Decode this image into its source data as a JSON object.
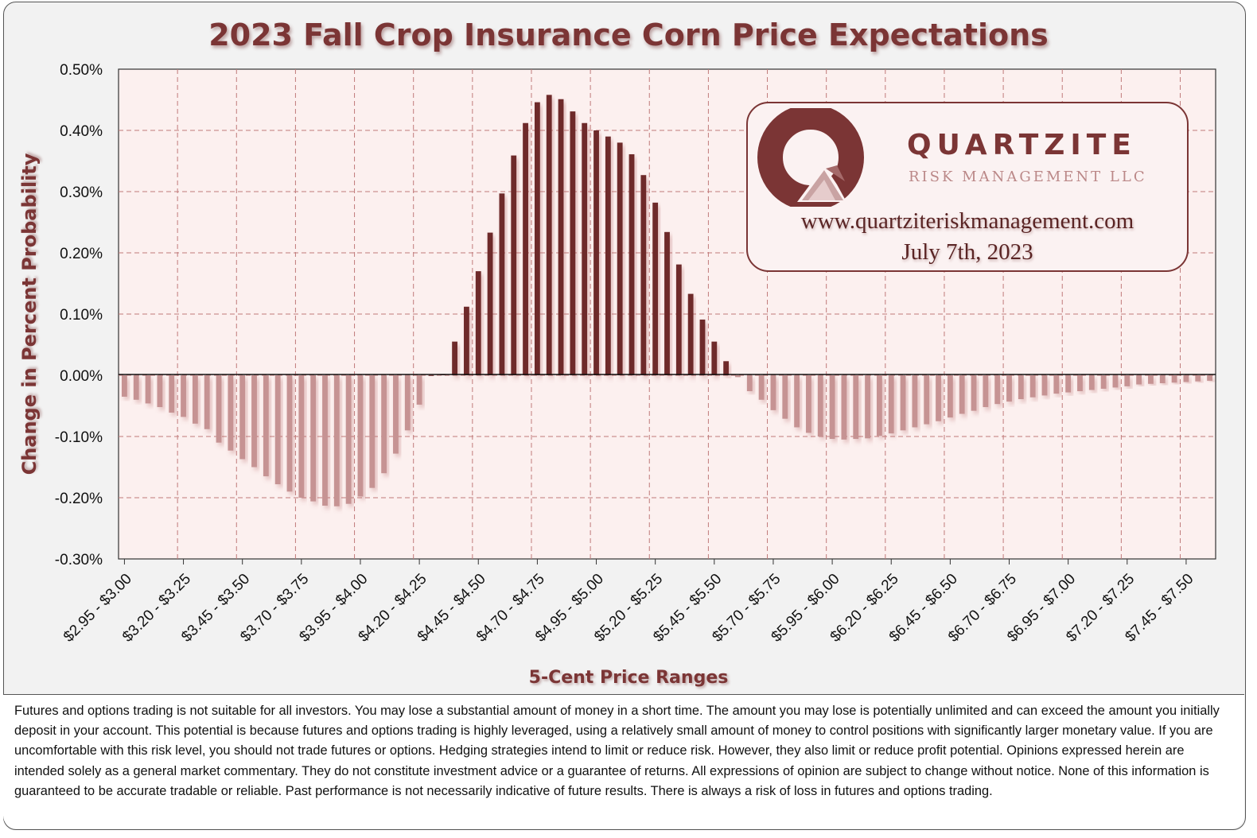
{
  "title": "2023 Fall Crop Insurance Corn Price Expectations",
  "logo": {
    "brand": "QUARTZITE",
    "subtitle": "RISK MANAGEMENT LLC",
    "url": "www.quartziteriskmanagement.com",
    "date": "July 7th, 2023"
  },
  "colors": {
    "positive": "#6e2b2b",
    "negative": "#c69393",
    "grid": "#c07a7a",
    "plot_bg": "#fcf0ef",
    "title": "#7b3535"
  },
  "chart_data": {
    "type": "bar",
    "title": "2023 Fall Crop Insurance Corn Price Expectations",
    "xlabel": "5-Cent Price Ranges",
    "ylabel": "Change in Percent Probability",
    "ylim": [
      -0.3,
      0.5
    ],
    "yticks": [
      "0.50%",
      "0.40%",
      "0.30%",
      "0.20%",
      "0.10%",
      "0.00%",
      "-0.10%",
      "-0.20%",
      "-0.30%"
    ],
    "tick_labels": [
      "$2.95 - $3.00",
      "$3.20 - $3.25",
      "$3.45 - $3.50",
      "$3.70 - $3.75",
      "$3.95 - $4.00",
      "$4.20 - $4.25",
      "$4.45 - $4.50",
      "$4.70 - $4.75",
      "$4.95 - $5.00",
      "$5.20 - $5.25",
      "$5.45 - $5.50",
      "$5.70 - $5.75",
      "$5.95 - $6.00",
      "$6.20 - $6.25",
      "$6.45 - $6.50",
      "$6.70 - $6.75",
      "$6.95 - $7.00",
      "$7.20 - $7.25",
      "$7.45 - $7.50"
    ],
    "categories_start": 2.95,
    "category_step": 0.05,
    "values": [
      -0.035,
      -0.04,
      -0.046,
      -0.052,
      -0.061,
      -0.068,
      -0.079,
      -0.088,
      -0.11,
      -0.123,
      -0.137,
      -0.15,
      -0.165,
      -0.178,
      -0.19,
      -0.2,
      -0.206,
      -0.213,
      -0.214,
      -0.21,
      -0.198,
      -0.184,
      -0.16,
      -0.128,
      -0.09,
      -0.048,
      0.0,
      0.002,
      0.055,
      0.112,
      0.17,
      0.233,
      0.297,
      0.359,
      0.412,
      0.446,
      0.458,
      0.451,
      0.431,
      0.412,
      0.4,
      0.39,
      0.38,
      0.361,
      0.327,
      0.282,
      0.234,
      0.181,
      0.133,
      0.091,
      0.055,
      0.023,
      -0.003,
      -0.026,
      -0.04,
      -0.057,
      -0.071,
      -0.085,
      -0.094,
      -0.1,
      -0.104,
      -0.105,
      -0.104,
      -0.103,
      -0.099,
      -0.095,
      -0.09,
      -0.085,
      -0.08,
      -0.075,
      -0.069,
      -0.063,
      -0.058,
      -0.052,
      -0.047,
      -0.043,
      -0.039,
      -0.036,
      -0.033,
      -0.03,
      -0.028,
      -0.026,
      -0.024,
      -0.022,
      -0.02,
      -0.018,
      -0.015,
      -0.014,
      -0.013,
      -0.012,
      -0.011,
      -0.01,
      -0.009
    ],
    "grid": true
  },
  "disclaimer": "Futures and options trading is not suitable for all investors. You may lose a substantial amount of money in a short time. The amount you may lose is potentially unlimited and can exceed the amount you initially deposit in your account. This potential is because futures and options trading is highly leveraged, using a relatively small amount of money to control positions with significantly larger monetary value. If you are uncomfortable with this risk level, you should not trade futures or options. Hedging strategies intend to limit or reduce risk. However, they also limit or reduce profit potential. Opinions expressed herein are intended solely as a general market commentary. They do not constitute investment advice or a guarantee of returns. All expressions of opinion are subject to change without notice. None of this information is guaranteed to be accurate tradable or reliable. Past performance is not necessarily indicative of future results. There is always a risk of loss in futures and options trading."
}
